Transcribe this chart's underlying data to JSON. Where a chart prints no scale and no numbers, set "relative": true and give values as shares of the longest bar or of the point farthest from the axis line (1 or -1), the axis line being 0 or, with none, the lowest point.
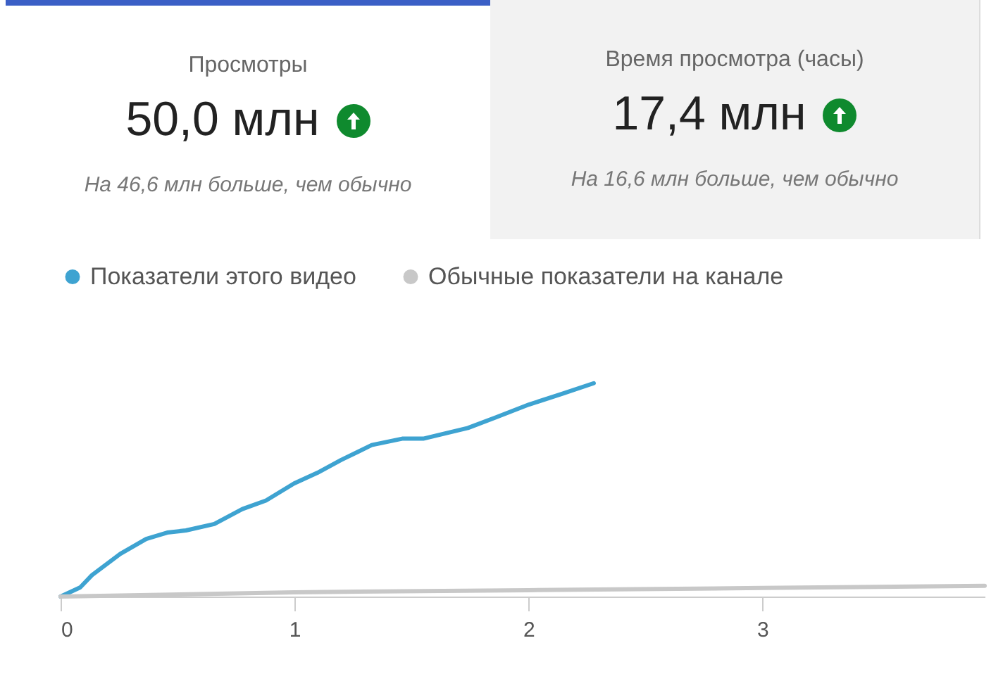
{
  "chart_data": [
    {
      "type": "other",
      "title": "Просмотры",
      "annotations": [
        "50,0 млн",
        "На 46,6 млн больше, чем обычно"
      ]
    },
    {
      "type": "other",
      "title": "Время просмотра (часы)",
      "annotations": [
        "17,4 млн",
        "На 16,6 млн больше, чем обычно"
      ]
    },
    {
      "type": "line",
      "relative": true,
      "xlim": [
        0,
        3.95
      ],
      "xticks": [
        0,
        1,
        2,
        3
      ],
      "legend": "top left",
      "series": [
        {
          "name": "Показатели этого видео",
          "color": "#3ea3d1",
          "x": [
            0,
            0.084,
            0.134,
            0.255,
            0.366,
            0.456,
            0.536,
            0.657,
            0.777,
            0.878,
            0.998,
            1.098,
            1.199,
            1.33,
            1.46,
            1.55,
            1.741,
            1.861,
            2.002,
            2.143,
            2.279
          ],
          "values": [
            0,
            0.043,
            0.1,
            0.2,
            0.27,
            0.3,
            0.31,
            0.34,
            0.41,
            0.45,
            0.53,
            0.58,
            0.64,
            0.71,
            0.74,
            0.74,
            0.79,
            0.84,
            0.9,
            0.95,
            1
          ]
        },
        {
          "name": "Обычные показатели на канале",
          "color": "#c8c8c8",
          "x": [
            0,
            1,
            2,
            3,
            3.95
          ],
          "values": [
            0,
            0.02,
            0.03,
            0.04,
            0.05
          ]
        }
      ]
    }
  ]
}
